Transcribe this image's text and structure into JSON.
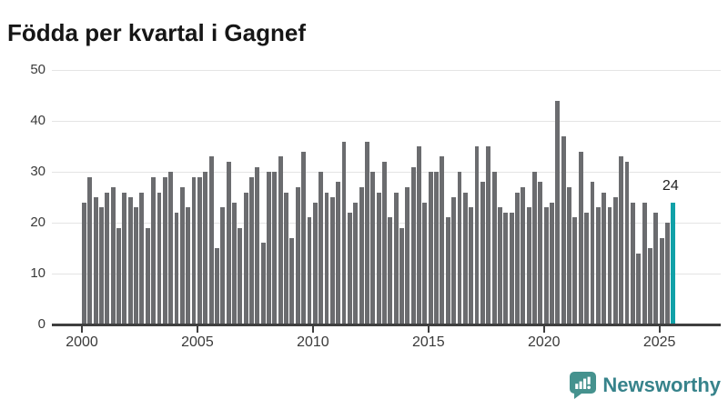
{
  "title": "Födda per kvartal i Gagnef",
  "colors": {
    "bar": "#6b6c6f",
    "highlight": "#11a1a8",
    "grid": "#e4e4e4",
    "axis": "#3f3f3f",
    "brand_text": "#37838b",
    "brand_icon": "#45928e"
  },
  "chart_data": {
    "type": "bar",
    "title": "Födda per kvartal i Gagnef",
    "frequency": "quarterly",
    "x_start": "2000-Q1",
    "x_end": "2025-Q3",
    "values": [
      24,
      29,
      25,
      23,
      26,
      27,
      19,
      26,
      25,
      23,
      26,
      19,
      29,
      26,
      29,
      30,
      22,
      27,
      23,
      29,
      29,
      30,
      33,
      15,
      23,
      32,
      24,
      19,
      26,
      29,
      31,
      16,
      30,
      30,
      33,
      26,
      17,
      27,
      34,
      21,
      24,
      30,
      26,
      25,
      28,
      36,
      22,
      24,
      27,
      36,
      30,
      26,
      32,
      21,
      26,
      19,
      27,
      31,
      35,
      24,
      30,
      30,
      33,
      21,
      25,
      30,
      26,
      23,
      35,
      28,
      35,
      30,
      23,
      22,
      22,
      26,
      27,
      23,
      30,
      28,
      23,
      24,
      44,
      37,
      27,
      21,
      34,
      22,
      28,
      23,
      26,
      23,
      25,
      33,
      32,
      24,
      14,
      24,
      15,
      22,
      17,
      20,
      24
    ],
    "years_per_row": 4,
    "y_ticks": [
      0,
      10,
      20,
      30,
      40,
      50
    ],
    "x_ticks": [
      "2000",
      "2005",
      "2010",
      "2015",
      "2020",
      "2025"
    ],
    "ylim": [
      0,
      50
    ],
    "grid": "horizontal",
    "legend": "none",
    "highlight_index": 102,
    "highlight_label": "24"
  },
  "branding": {
    "name": "Newsworthy",
    "icon": "newsworthy-speech-bubble-chart-icon"
  }
}
